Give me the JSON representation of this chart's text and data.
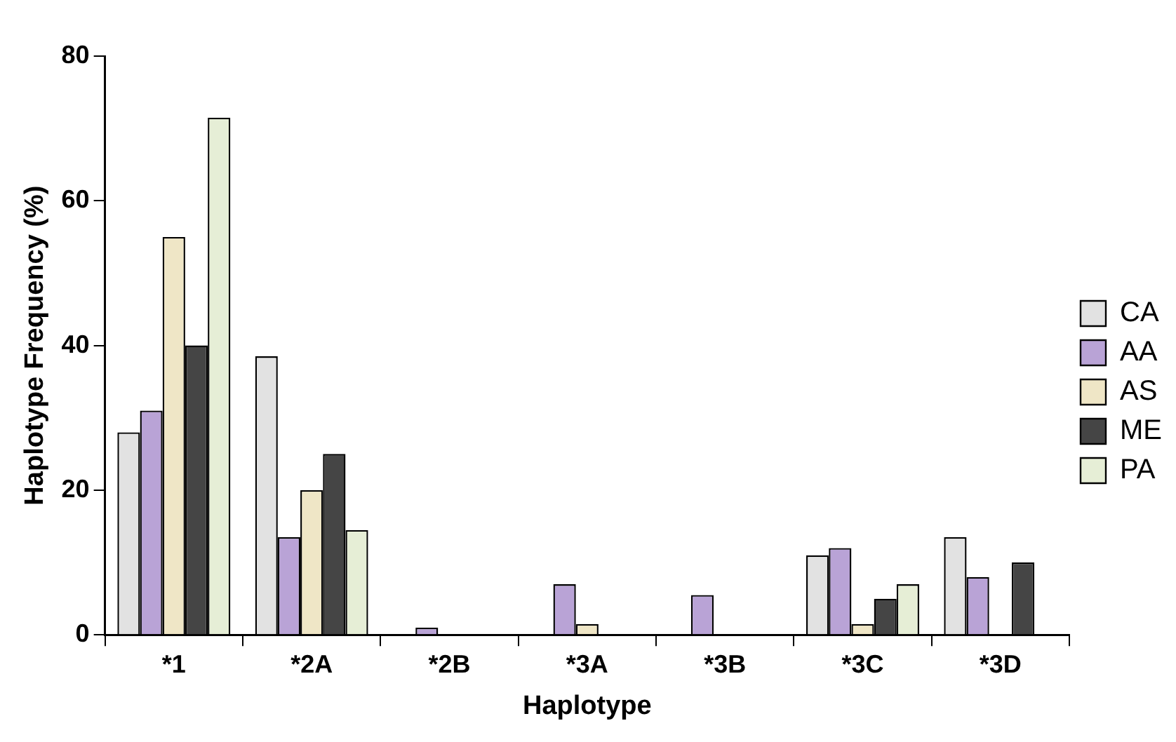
{
  "chart_data": {
    "type": "bar",
    "xlabel": "Haplotype",
    "ylabel": "Haplotype Frequency (%)",
    "categories": [
      "*1",
      "*2A",
      "*2B",
      "*3A",
      "*3B",
      "*3C",
      "*3D"
    ],
    "series": [
      {
        "name": "CA",
        "color": "#e2e2e2",
        "values": [
          28,
          38.5,
          0,
          0,
          0,
          11,
          13.5
        ]
      },
      {
        "name": "AA",
        "color": "#b9a3d6",
        "values": [
          31,
          13.5,
          1,
          7,
          5.5,
          12,
          8
        ]
      },
      {
        "name": "AS",
        "color": "#efe6c6",
        "values": [
          55,
          20,
          0,
          1.5,
          0,
          1.5,
          0
        ]
      },
      {
        "name": "ME",
        "color": "#454545",
        "values": [
          40,
          25,
          0,
          0,
          0,
          5,
          10
        ]
      },
      {
        "name": "PA",
        "color": "#e6eed6",
        "values": [
          71.5,
          14.5,
          0,
          0,
          0,
          7,
          0
        ]
      }
    ],
    "ylim": [
      0,
      80
    ],
    "yticks": [
      0,
      20,
      40,
      60,
      80
    ],
    "grid": false,
    "legend": "right"
  }
}
